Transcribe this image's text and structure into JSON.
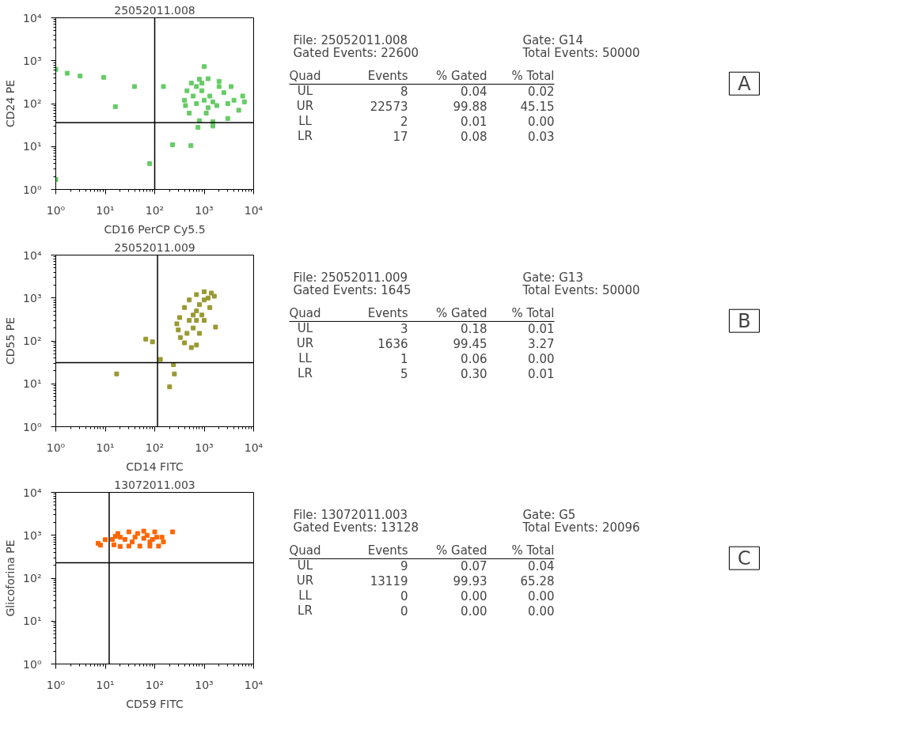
{
  "chart_data": [
    {
      "type": "scatter",
      "title": "25052011.008",
      "xlabel": "CD16 PerCP Cy5.5",
      "ylabel": "CD24 PE",
      "log": "xy",
      "xlim": [
        1,
        10000
      ],
      "ylim": [
        1,
        10000
      ],
      "xticks": [
        {
          "value": 1,
          "label": "10⁰"
        },
        {
          "value": 10,
          "label": "10¹"
        },
        {
          "value": 100,
          "label": "10²"
        },
        {
          "value": 1000,
          "label": "10³"
        },
        {
          "value": 10000,
          "label": "10⁴"
        }
      ],
      "yticks": [
        {
          "value": 1,
          "label": "10⁰"
        },
        {
          "value": 10,
          "label": "10¹"
        },
        {
          "value": 100,
          "label": "10²"
        },
        {
          "value": 1000,
          "label": "10³"
        },
        {
          "value": 10000,
          "label": "10⁴"
        }
      ],
      "grid": false,
      "marker": "square",
      "ref_lines": [
        {
          "axis": "x",
          "value": 100,
          "color": "#000000"
        },
        {
          "axis": "y",
          "value": 36,
          "color": "#000000"
        }
      ],
      "series": [
        {
          "color": "#66cc66",
          "x": [
            400,
            450,
            550,
            800,
            1200,
            2000,
            3500,
            6000,
            6500,
            5000,
            3000,
            1500,
            800,
            500,
            420,
            700,
            1000,
            1300,
            900,
            1800,
            2500,
            600,
            1100,
            2000,
            1500,
            4000,
            700,
            1200,
            3000,
            900,
            1500,
            750,
            1,
            1.7,
            3.1,
            9.3,
            39,
            16,
            150,
            230,
            540,
            79,
            1,
            1000
          ],
          "values": [
            120,
            200,
            300,
            370,
            380,
            330,
            250,
            150,
            110,
            70,
            45,
            38,
            40,
            60,
            90,
            100,
            120,
            150,
            200,
            90,
            180,
            150,
            60,
            250,
            110,
            120,
            250,
            80,
            100,
            300,
            30,
            28,
            630,
            510,
            440,
            410,
            250,
            85,
            250,
            11,
            10.5,
            4,
            1.7,
            730
          ]
        }
      ]
    },
    {
      "type": "other",
      "annotations": [
        "File: 25052011.008",
        "Gate: G14",
        "Gated Events: 22600",
        "Total Events: 50000",
        "Quad",
        "Events",
        "% Gated",
        "% Total",
        "UL",
        "8",
        "0.04",
        "0.02",
        "UR",
        "22573",
        "99.88",
        "45.15",
        "LL",
        "2",
        "0.01",
        "0.00",
        "LR",
        "17",
        "0.08",
        "0.03",
        "A"
      ]
    },
    {
      "type": "scatter",
      "title": "25052011.009",
      "xlabel": "CD14 FITC",
      "ylabel": "CD55 PE",
      "log": "xy",
      "xlim": [
        1,
        10000
      ],
      "ylim": [
        1,
        10000
      ],
      "xticks": [
        {
          "value": 1,
          "label": "10⁰"
        },
        {
          "value": 10,
          "label": "10¹"
        },
        {
          "value": 100,
          "label": "10²"
        },
        {
          "value": 1000,
          "label": "10³"
        },
        {
          "value": 10000,
          "label": "10⁴"
        }
      ],
      "yticks": [
        {
          "value": 1,
          "label": "10⁰"
        },
        {
          "value": 10,
          "label": "10¹"
        },
        {
          "value": 100,
          "label": "10²"
        },
        {
          "value": 1000,
          "label": "10³"
        },
        {
          "value": 10000,
          "label": "10⁴"
        }
      ],
      "grid": false,
      "marker": "square",
      "ref_lines": [
        {
          "axis": "x",
          "value": 114,
          "color": "#000000"
        },
        {
          "axis": "y",
          "value": 31,
          "color": "#000000"
        }
      ],
      "series": [
        {
          "color": "#999933",
          "x": [
            300,
            330,
            400,
            550,
            700,
            800,
            1000,
            1300,
            1600,
            1400,
            1000,
            700,
            500,
            400,
            320,
            280,
            500,
            600,
            700,
            800,
            1000,
            600,
            450,
            900,
            700,
            1200,
            66,
            17,
            200,
            250,
            240,
            1700,
            90,
            130
          ],
          "values": [
            180,
            120,
            90,
            70,
            80,
            150,
            300,
            600,
            1100,
            1300,
            1400,
            1200,
            900,
            600,
            350,
            250,
            300,
            400,
            500,
            700,
            900,
            200,
            150,
            400,
            300,
            1000,
            110,
            17,
            8.5,
            17,
            28,
            210,
            95,
            37
          ]
        }
      ]
    },
    {
      "type": "other",
      "annotations": [
        "File: 25052011.009",
        "Gate: G13",
        "Gated Events: 1645",
        "Total Events: 50000",
        "Quad",
        "Events",
        "% Gated",
        "% Total",
        "UL",
        "3",
        "0.18",
        "0.01",
        "UR",
        "1636",
        "99.45",
        "3.27",
        "LL",
        "1",
        "0.06",
        "0.00",
        "LR",
        "5",
        "0.30",
        "0.01",
        "B"
      ]
    },
    {
      "type": "scatter",
      "title": "13072011.003",
      "xlabel": "CD59 FITC",
      "ylabel": "Glicoforina PE",
      "log": "xy",
      "xlim": [
        1,
        10000
      ],
      "ylim": [
        1,
        10000
      ],
      "xticks": [
        {
          "value": 1,
          "label": "10⁰"
        },
        {
          "value": 10,
          "label": "10¹"
        },
        {
          "value": 100,
          "label": "10²"
        },
        {
          "value": 1000,
          "label": "10³"
        },
        {
          "value": 10000,
          "label": "10⁴"
        }
      ],
      "yticks": [
        {
          "value": 1,
          "label": "10⁰"
        },
        {
          "value": 10,
          "label": "10¹"
        },
        {
          "value": 100,
          "label": "10²"
        },
        {
          "value": 1000,
          "label": "10³"
        },
        {
          "value": 10000,
          "label": "10⁴"
        }
      ],
      "grid": false,
      "marker": "square",
      "ref_lines": [
        {
          "axis": "x",
          "value": 12,
          "color": "#000000"
        },
        {
          "axis": "y",
          "value": 230,
          "color": "#000000"
        }
      ],
      "series": [
        {
          "color": "#ff6600",
          "x": [
            14,
            15,
            20,
            30,
            50,
            80,
            120,
            150,
            140,
            100,
            60,
            30,
            18,
            16,
            25,
            40,
            60,
            90,
            35,
            70,
            110,
            20,
            45,
            80,
            7.2,
            8,
            230,
            10
          ],
          "values": [
            800,
            600,
            550,
            560,
            560,
            560,
            560,
            700,
            900,
            1200,
            1250,
            1200,
            1100,
            950,
            800,
            900,
            850,
            800,
            700,
            1000,
            900,
            900,
            1100,
            700,
            650,
            590,
            1200,
            790
          ]
        }
      ]
    },
    {
      "type": "other",
      "annotations": [
        "File: 13072011.003",
        "Gate: G5",
        "Gated Events: 13128",
        "Total Events: 20096",
        "Quad",
        "Events",
        "% Gated",
        "% Total",
        "UL",
        "9",
        "0.07",
        "0.04",
        "UR",
        "13119",
        "99.93",
        "65.28",
        "LL",
        "0",
        "0.00",
        "0.00",
        "LR",
        "0",
        "0.00",
        "0.00",
        "C"
      ]
    }
  ]
}
